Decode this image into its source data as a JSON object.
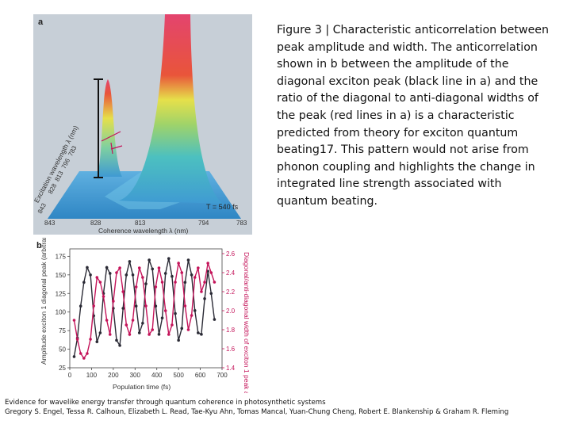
{
  "caption": "Figure 3 | Characteristic anticorrelation between peak amplitude and width. The anticorrelation shown in b between the amplitude of the diagonal exciton peak (black line in a) and the ratio of the diagonal to anti-diagonal widths of the peak (red lines in a) is a characteristic predicted from theory for exciton quantum beating17. This pattern would not arise from phonon coupling and highlights the change in integrated line strength associated with quantum beating.",
  "footer": {
    "line1": "Evidence for wavelike energy transfer through quantum coherence in photosynthetic systems",
    "line2": "Gregory S. Engel, Tessa R. Calhoun, Elizabeth L. Read, Tae-Kyu Ahn, Tomas Mancal, Yuan-Chung Cheng, Robert E. Blankenship & Graham R. Fleming"
  },
  "panel_a": {
    "label": "a",
    "x_axis_label": "Coherence wavelength λ (nm)",
    "x_ticks": [
      "843",
      "828",
      "813",
      "794",
      "783"
    ],
    "y_axis_label": "Excitation wavelength λ (nm)",
    "y_ticks": [
      "843",
      "828",
      "813",
      "796",
      "783"
    ],
    "time_label": "T = 540 fs",
    "colors": {
      "background": "#c7cfd7",
      "base": "#3f9ad3",
      "peak_top": "#e3446e"
    }
  },
  "chart_data": {
    "type": "line",
    "title": "",
    "panel_label": "b",
    "xlabel": "Population time (fs)",
    "ylabel_left": "Amplitude exciton 1 diagonal peak (arbitrary units)",
    "ylabel_right": "Diagonal/anti-diagonal width of exciton 1 peak at half height",
    "xlim": [
      0,
      700
    ],
    "ylim_left": [
      25,
      185
    ],
    "ylim_right": [
      1.4,
      2.65
    ],
    "x_ticks": [
      "0",
      "100",
      "200",
      "300",
      "400",
      "500",
      "600",
      "700"
    ],
    "y_ticks_left": [
      "25",
      "50",
      "75",
      "100",
      "125",
      "150",
      "175"
    ],
    "y_ticks_right": [
      "1.4",
      "1.6",
      "1.8",
      "2.0",
      "2.2",
      "2.4",
      "2.6"
    ],
    "x": [
      20,
      35,
      50,
      65,
      80,
      95,
      110,
      125,
      140,
      155,
      170,
      185,
      200,
      215,
      230,
      245,
      260,
      275,
      290,
      305,
      320,
      335,
      350,
      365,
      380,
      395,
      410,
      425,
      440,
      455,
      470,
      485,
      500,
      515,
      530,
      545,
      560,
      575,
      590,
      605,
      620,
      635,
      650,
      665
    ],
    "series": [
      {
        "axis": "left",
        "color": "#2a2a35",
        "values": [
          40,
          65,
          108,
          140,
          160,
          150,
          95,
          60,
          72,
          125,
          160,
          152,
          105,
          62,
          55,
          105,
          150,
          168,
          150,
          108,
          72,
          85,
          138,
          170,
          158,
          108,
          70,
          92,
          152,
          172,
          148,
          98,
          62,
          78,
          140,
          170,
          150,
          102,
          72,
          70,
          118,
          155,
          125,
          90
        ]
      },
      {
        "axis": "right",
        "color": "#c4145a",
        "values": [
          1.9,
          1.7,
          1.55,
          1.5,
          1.55,
          1.7,
          2.05,
          2.35,
          2.3,
          2.15,
          1.9,
          1.75,
          2.1,
          2.4,
          2.45,
          2.2,
          1.85,
          1.75,
          1.9,
          2.25,
          2.45,
          2.35,
          2.05,
          1.75,
          1.8,
          2.25,
          2.45,
          2.3,
          2.0,
          1.75,
          1.85,
          2.3,
          2.5,
          2.4,
          2.05,
          1.8,
          1.95,
          2.35,
          2.45,
          2.2,
          2.3,
          2.5,
          2.4,
          2.3
        ]
      }
    ]
  }
}
